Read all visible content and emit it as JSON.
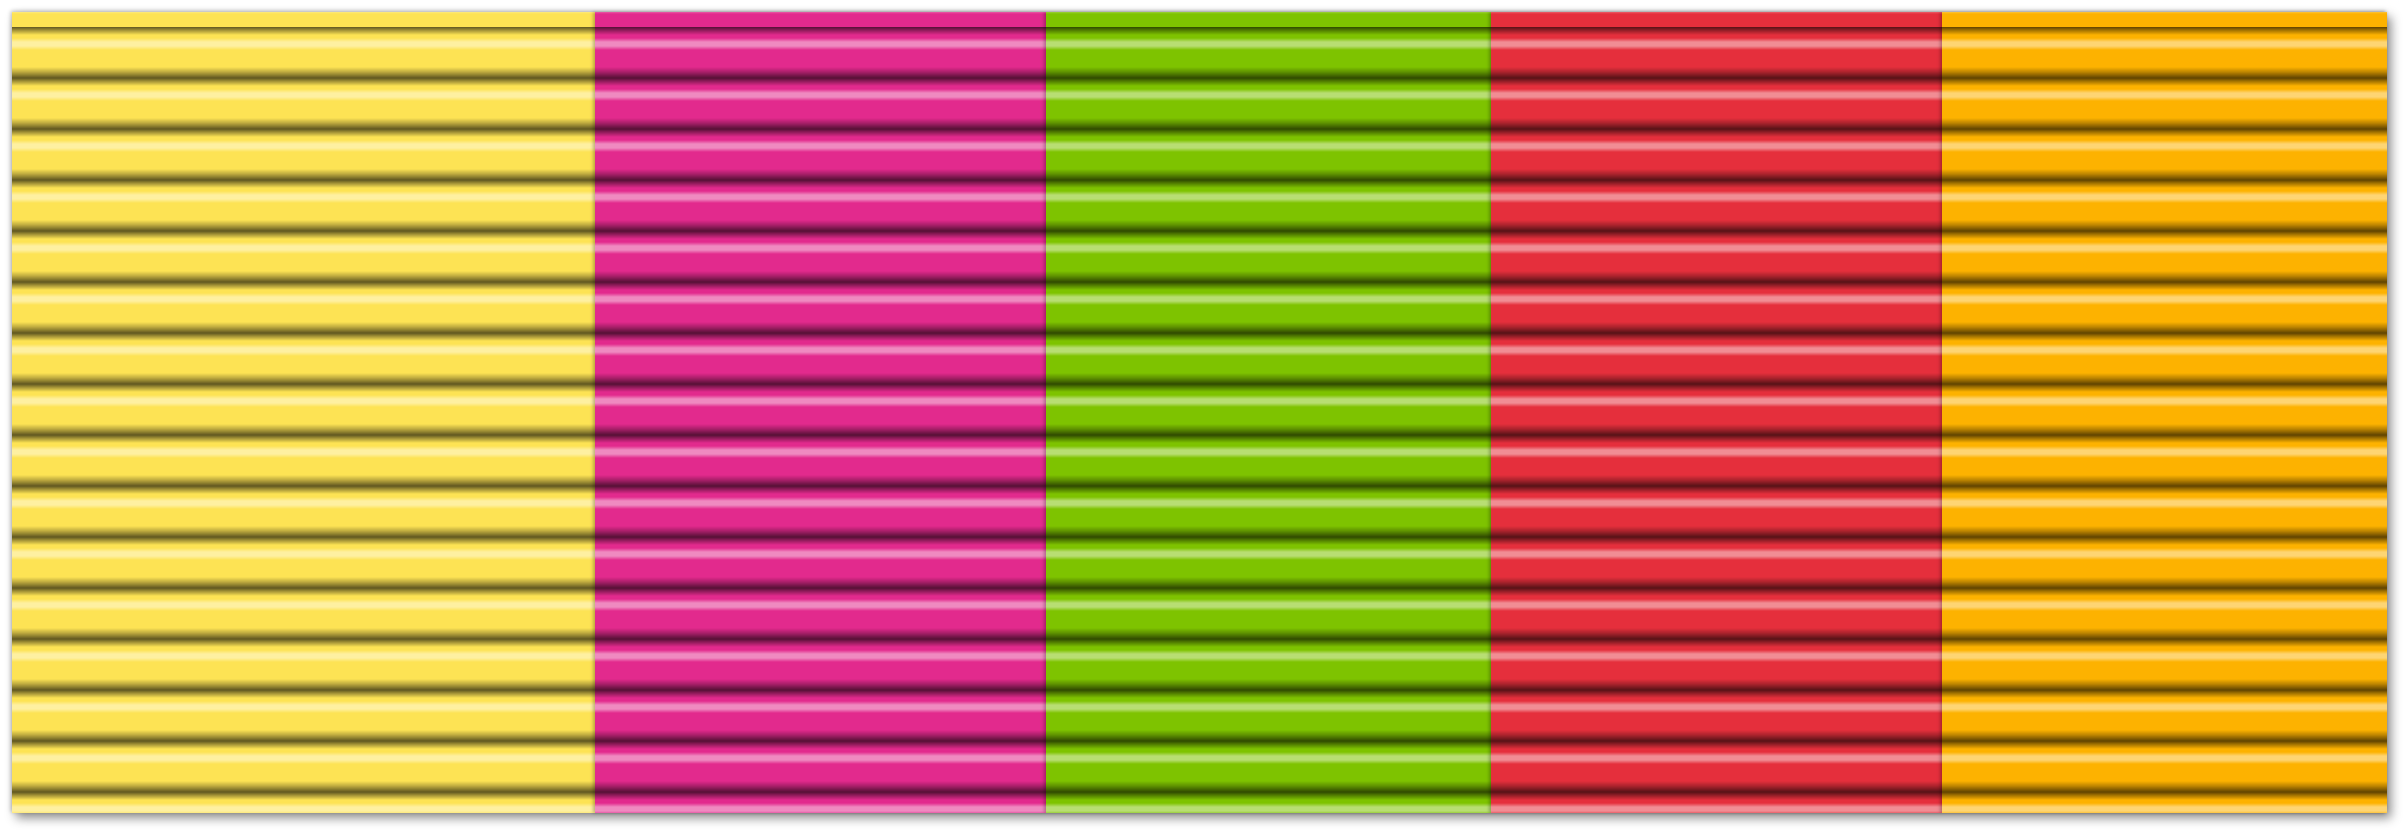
{
  "panels": [
    {
      "name": "yellow",
      "color": "#fde354"
    },
    {
      "name": "magenta",
      "color": "#e22a8d"
    },
    {
      "name": "green",
      "color": "#7ec300"
    },
    {
      "name": "red",
      "color": "#e52f3c"
    },
    {
      "name": "orange",
      "color": "#fdb200"
    }
  ]
}
